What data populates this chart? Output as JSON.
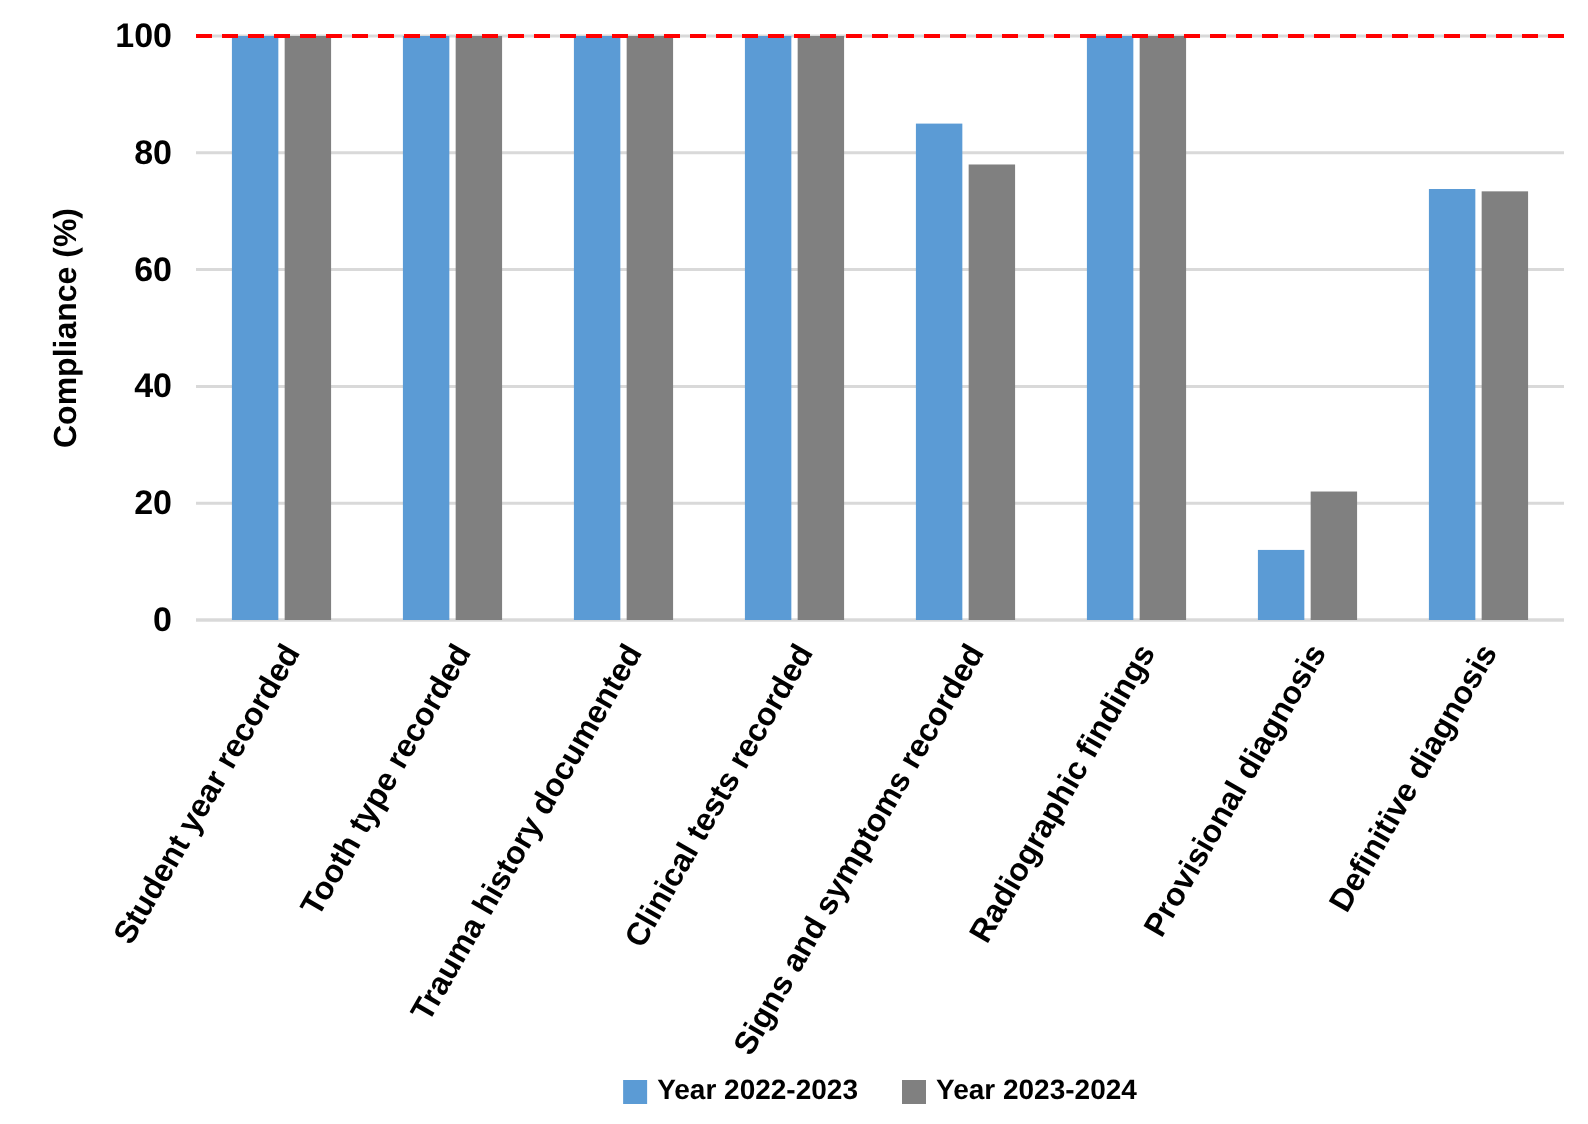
{
  "chart_data": {
    "type": "bar",
    "ylabel": "Compliance (%)",
    "categories": [
      "Student year recorded",
      "Tooth type recorded",
      "Trauma history documented",
      "Clinical tests recorded",
      "Signs and symptoms recorded",
      "Radiographic findings",
      "Provisional diagnosis",
      "Definitive diagnosis"
    ],
    "series": [
      {
        "name": "Year 2022-2023",
        "color": "#5b9bd5",
        "values": [
          100,
          100,
          100,
          100,
          85,
          100,
          12,
          73.8
        ]
      },
      {
        "name": "Year 2023-2024",
        "color": "#808080",
        "values": [
          100,
          100,
          100,
          100,
          78,
          100,
          22,
          73.4
        ]
      }
    ],
    "ylim": [
      0,
      100
    ],
    "yticks": [
      0,
      20,
      40,
      60,
      80,
      100
    ],
    "grid": "y",
    "legend": "bottom",
    "ref_lines": [
      {
        "axis": "y",
        "value": 100,
        "color": "#ff0000",
        "line_style": "dashed"
      }
    ]
  }
}
